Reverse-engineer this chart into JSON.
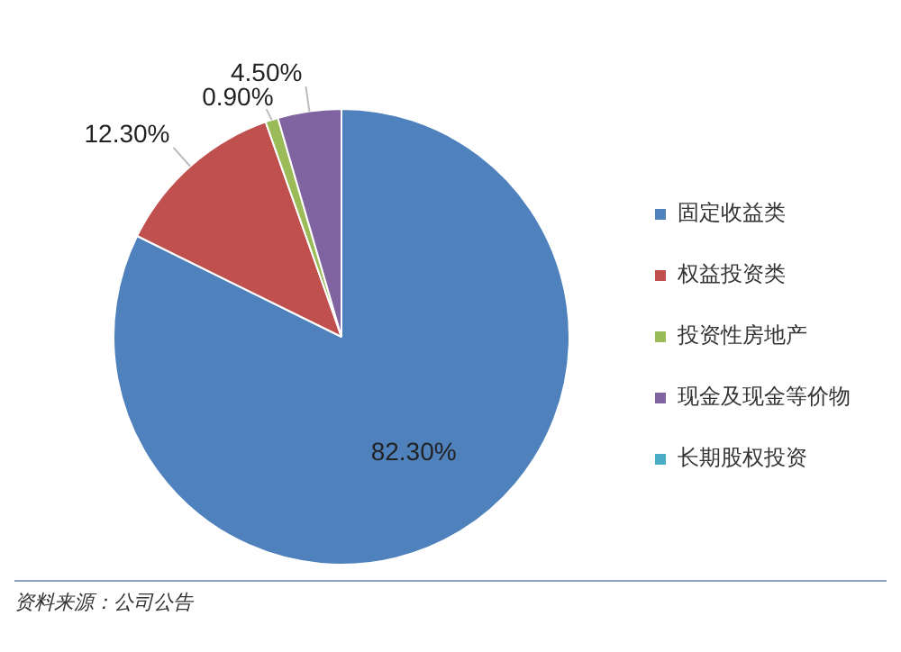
{
  "chart_data": {
    "type": "pie",
    "categories": [
      "固定收益类",
      "权益投资类",
      "投资性房地产",
      "现金及现金等价物",
      "长期股权投资"
    ],
    "values": [
      82.3,
      12.3,
      0.9,
      4.5,
      0
    ],
    "colors": [
      "#4f81bd",
      "#c0504d",
      "#9bbb59",
      "#8064a2",
      "#4bacc6"
    ],
    "value_labels": [
      "82.30%",
      "12.30%",
      "0.90%",
      "4.50%",
      null
    ],
    "legend": "right",
    "annotations": [
      "资料来源：公司公告"
    ]
  }
}
